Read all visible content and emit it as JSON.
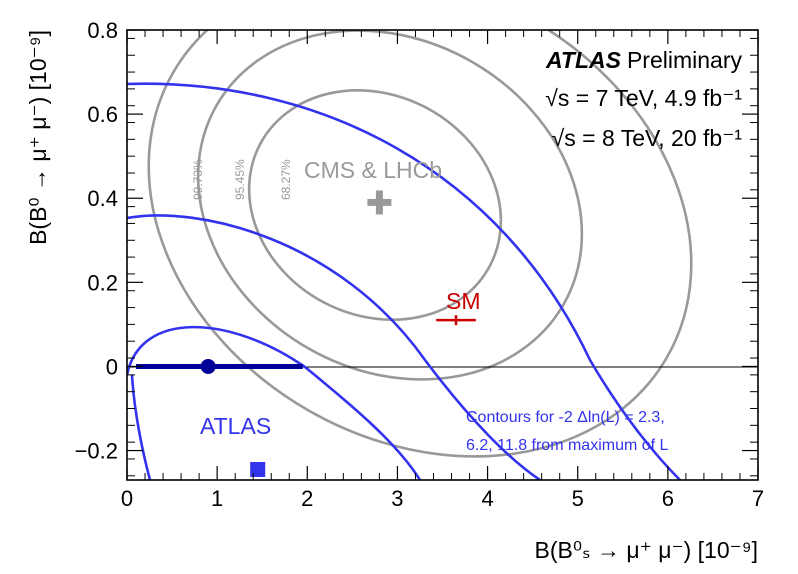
{
  "chart_data": {
    "type": "contour",
    "xlabel": "B(B⁰ₛ → μ⁺ μ⁻) [10⁻⁹]",
    "ylabel": "B(B⁰ → μ⁺ μ⁻) [10⁻⁹]",
    "xlim": [
      0,
      7
    ],
    "ylim": [
      -0.27,
      0.8
    ],
    "x_ticks": [
      "0",
      "1",
      "2",
      "3",
      "4",
      "5",
      "6",
      "7"
    ],
    "y_ticks": [
      "−0.2",
      "0",
      "0.2",
      "0.4",
      "0.6",
      "0.8"
    ],
    "annotations": {
      "atlas_bold": "ATLAS",
      "atlas_rest": "Preliminary",
      "energy_7": "√s = 7 TeV, 4.9 fb⁻¹",
      "energy_8": "√s = 8 TeV, 20 fb⁻¹",
      "cms_lhcb": "CMS & LHCb",
      "sm": "SM",
      "atlas_label": "ATLAS",
      "contour_note_1": "Contours for -2 Δln(L) = 2.3,",
      "contour_note_2": "6.2, 11.8 from maximum of L",
      "cl_labels": [
        "99.73%",
        "95.45%",
        "68.27%"
      ]
    },
    "atlas_best_fit": {
      "x": 0.9,
      "y": 0.0
    },
    "atlas_interval": {
      "x_low": 0.1,
      "x_high": 1.95,
      "y": 0.0
    },
    "atlas_marker": {
      "x": 1.45,
      "y": -0.245
    },
    "cms_lhcb_best_fit": {
      "x": 2.8,
      "y": 0.39
    },
    "sm_point": {
      "x": 3.65,
      "y": 0.11,
      "x_err": 0.22
    },
    "colors": {
      "atlas": "#3333ee",
      "atlas_dark": "#000099",
      "cms_lhcb": "#999999",
      "sm": "#cc0000",
      "axis": "#000000"
    }
  }
}
